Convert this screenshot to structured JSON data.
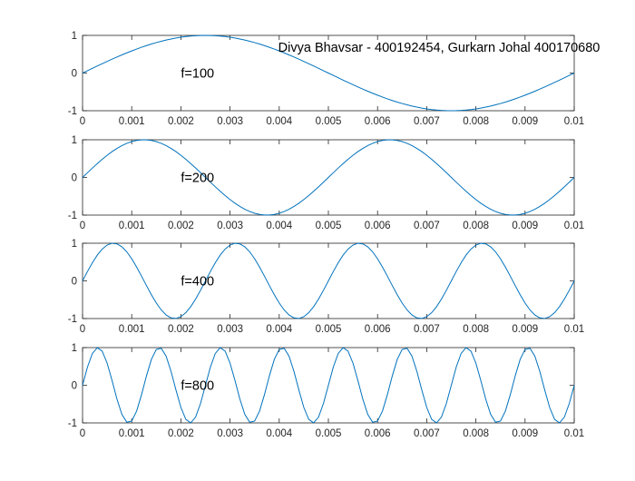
{
  "figure": {
    "title": "Divya Bhavsar - 400192454, Gurkarn Johal 400170680"
  },
  "colors": {
    "line": "#0072BD",
    "axis": "#262626"
  },
  "chart_data": [
    {
      "type": "line",
      "function": "sine",
      "frequency": 100,
      "sample_step": 0.0001,
      "annotation": "f=100",
      "xlim": [
        0,
        0.01
      ],
      "ylim": [
        -1,
        1
      ],
      "xticks": [
        "0",
        "0.001",
        "0.002",
        "0.003",
        "0.004",
        "0.005",
        "0.006",
        "0.007",
        "0.008",
        "0.009",
        "0.01"
      ],
      "yticks": [
        "-1",
        "0",
        "1"
      ]
    },
    {
      "type": "line",
      "function": "sine",
      "frequency": 200,
      "sample_step": 0.0001,
      "annotation": "f=200",
      "xlim": [
        0,
        0.01
      ],
      "ylim": [
        -1,
        1
      ],
      "xticks": [
        "0",
        "0.001",
        "0.002",
        "0.003",
        "0.004",
        "0.005",
        "0.006",
        "0.007",
        "0.008",
        "0.009",
        "0.01"
      ],
      "yticks": [
        "-1",
        "0",
        "1"
      ]
    },
    {
      "type": "line",
      "function": "sine",
      "frequency": 400,
      "sample_step": 0.0001,
      "annotation": "f=400",
      "xlim": [
        0,
        0.01
      ],
      "ylim": [
        -1,
        1
      ],
      "xticks": [
        "0",
        "0.001",
        "0.002",
        "0.003",
        "0.004",
        "0.005",
        "0.006",
        "0.007",
        "0.008",
        "0.009",
        "0.01"
      ],
      "yticks": [
        "-1",
        "0",
        "1"
      ]
    },
    {
      "type": "line",
      "function": "sine",
      "frequency": 800,
      "sample_step": 0.0001,
      "annotation": "f=800",
      "xlim": [
        0,
        0.01
      ],
      "ylim": [
        -1,
        1
      ],
      "xticks": [
        "0",
        "0.001",
        "0.002",
        "0.003",
        "0.004",
        "0.005",
        "0.006",
        "0.007",
        "0.008",
        "0.009",
        "0.01"
      ],
      "yticks": [
        "-1",
        "0",
        "1"
      ]
    }
  ]
}
